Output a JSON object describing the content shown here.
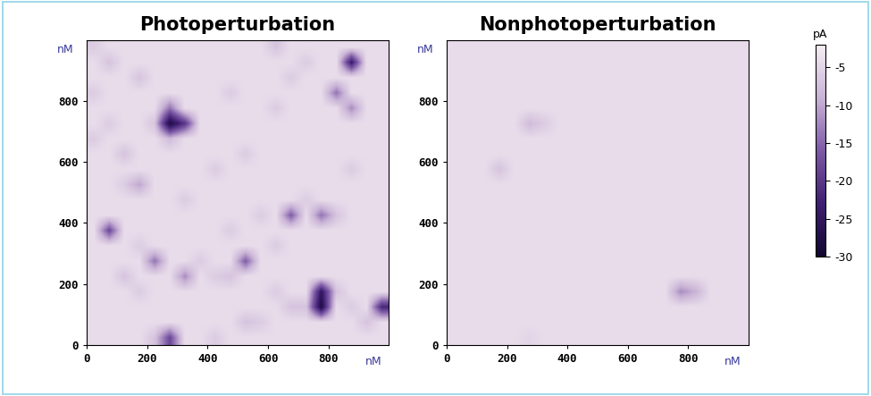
{
  "chart_data": [
    {
      "type": "heatmap",
      "title": "Photoperturbation",
      "xlabel": "nM",
      "ylabel": "nM",
      "xlim": [
        0,
        1000
      ],
      "ylim": [
        0,
        1000
      ],
      "xticks": [
        0,
        200,
        400,
        600,
        800
      ],
      "yticks": [
        0,
        200,
        400,
        600,
        800
      ],
      "cells": [
        [
          -4,
          -4,
          -4,
          -4,
          -7,
          -18,
          -4,
          -4,
          -6,
          -4,
          -4,
          -4,
          -4,
          -4,
          -4,
          -4,
          -4,
          -4,
          -4,
          -4
        ],
        [
          -4,
          -4,
          -4,
          -4,
          -4,
          -4,
          -4,
          -4,
          -4,
          -4,
          -7,
          -6,
          -4,
          -4,
          -4,
          -4,
          -4,
          -4,
          -7,
          -4
        ],
        [
          -4,
          -4,
          -4,
          -4,
          -4,
          -4,
          -4,
          -4,
          -4,
          -4,
          -4,
          -4,
          -4,
          -7,
          -7,
          -28,
          -4,
          -6,
          -4,
          -22
        ],
        [
          -4,
          -4,
          -4,
          -6,
          -4,
          -4,
          -4,
          -4,
          -4,
          -4,
          -4,
          -4,
          -6,
          -4,
          -4,
          -25,
          -7,
          -4,
          -4,
          -4
        ],
        [
          -4,
          -4,
          -7,
          -4,
          -4,
          -4,
          -12,
          -4,
          -6,
          -7,
          -4,
          -4,
          -4,
          -4,
          -4,
          -4,
          -4,
          -4,
          -4,
          -4
        ],
        [
          -4,
          -4,
          -4,
          -4,
          -14,
          -4,
          -4,
          -6,
          -4,
          -4,
          -16,
          -4,
          -4,
          -4,
          -4,
          -4,
          -4,
          -4,
          -4,
          -4
        ],
        [
          -4,
          -4,
          -4,
          -6,
          -4,
          -4,
          -4,
          -4,
          -4,
          -4,
          -4,
          -4,
          -6,
          -4,
          -4,
          -4,
          -4,
          -4,
          -4,
          -4
        ],
        [
          -4,
          -18,
          -4,
          -4,
          -4,
          -4,
          -4,
          -4,
          -4,
          -6,
          -4,
          -4,
          -4,
          -4,
          -4,
          -4,
          -4,
          -4,
          -4,
          -4
        ],
        [
          -4,
          -4,
          -4,
          -4,
          -4,
          -4,
          -4,
          -4,
          -4,
          -4,
          -4,
          -6,
          -4,
          -16,
          -4,
          -14,
          -7,
          -4,
          -4,
          -4
        ],
        [
          -4,
          -4,
          -4,
          -4,
          -4,
          -4,
          -6,
          -4,
          -4,
          -4,
          -4,
          -4,
          -4,
          -4,
          -6,
          -4,
          -4,
          -4,
          -4,
          -4
        ],
        [
          -4,
          -4,
          -6,
          -10,
          -4,
          -4,
          -4,
          -4,
          -4,
          -4,
          -4,
          -4,
          -4,
          -4,
          -4,
          -4,
          -4,
          -4,
          -4,
          -4
        ],
        [
          -4,
          -4,
          -4,
          -4,
          -4,
          -4,
          -4,
          -4,
          -6,
          -4,
          -4,
          -4,
          -4,
          -4,
          -4,
          -4,
          -4,
          -6,
          -4,
          -4
        ],
        [
          -4,
          -4,
          -7,
          -4,
          -4,
          -4,
          -4,
          -4,
          -4,
          -4,
          -6,
          -4,
          -4,
          -4,
          -4,
          -4,
          -4,
          -4,
          -4,
          -4
        ],
        [
          -6,
          -4,
          -4,
          -4,
          -4,
          -8,
          -4,
          -4,
          -4,
          -4,
          -4,
          -4,
          -4,
          -4,
          -4,
          -4,
          -4,
          -4,
          -4,
          -4
        ],
        [
          -4,
          -6,
          -4,
          -4,
          -7,
          -28,
          -20,
          -4,
          -4,
          -4,
          -4,
          -4,
          -4,
          -4,
          -4,
          -4,
          -4,
          -4,
          -4,
          -4
        ],
        [
          -4,
          -4,
          -4,
          -4,
          -4,
          -14,
          -4,
          -4,
          -4,
          -4,
          -4,
          -4,
          -6,
          -4,
          -4,
          -4,
          -4,
          -12,
          -4,
          -4
        ],
        [
          -6,
          -4,
          -4,
          -4,
          -4,
          -4,
          -4,
          -4,
          -4,
          -6,
          -4,
          -4,
          -4,
          -4,
          -4,
          -4,
          -14,
          -4,
          -4,
          -4
        ],
        [
          -4,
          -4,
          -4,
          -7,
          -4,
          -4,
          -4,
          -4,
          -4,
          -4,
          -4,
          -4,
          -4,
          -6,
          -4,
          -4,
          -4,
          -4,
          -4,
          -4
        ],
        [
          -4,
          -7,
          -4,
          -4,
          -4,
          -4,
          -4,
          -4,
          -4,
          -4,
          -4,
          -4,
          -4,
          -4,
          -6,
          -4,
          -4,
          -24,
          -4,
          -4
        ],
        [
          -6,
          -4,
          -4,
          -4,
          -4,
          -4,
          -4,
          -4,
          -4,
          -4,
          -4,
          -4,
          -7,
          -4,
          -4,
          -4,
          -4,
          -4,
          -4,
          -4
        ]
      ]
    },
    {
      "type": "heatmap",
      "title": "Nonphotoperturbation",
      "xlabel": "nM",
      "ylabel": "nM",
      "xlim": [
        0,
        1000
      ],
      "ylim": [
        0,
        1000
      ],
      "xticks": [
        0,
        200,
        400,
        600,
        800
      ],
      "yticks": [
        0,
        200,
        400,
        600,
        800
      ],
      "cells": [
        [
          -4,
          -4,
          -4,
          -4,
          -4,
          -5,
          -4,
          -4,
          -4,
          -4,
          -4,
          -4,
          -4,
          -4,
          -4,
          -4,
          -4,
          -4,
          -4,
          -4
        ],
        [
          -4,
          -4,
          -4,
          -4,
          -4,
          -4,
          -4,
          -4,
          -4,
          -4,
          -4,
          -4,
          -4,
          -4,
          -4,
          -4,
          -4,
          -4,
          -4,
          -4
        ],
        [
          -4,
          -4,
          -4,
          -4,
          -4,
          -4,
          -4,
          -4,
          -4,
          -4,
          -4,
          -4,
          -4,
          -4,
          -4,
          -4,
          -4,
          -4,
          -4,
          -4
        ],
        [
          -4,
          -4,
          -4,
          -4,
          -4,
          -4,
          -4,
          -4,
          -4,
          -4,
          -4,
          -4,
          -4,
          -4,
          -4,
          -12,
          -9,
          -4,
          -4,
          -4
        ],
        [
          -4,
          -4,
          -4,
          -4,
          -4,
          -4,
          -4,
          -4,
          -4,
          -4,
          -4,
          -4,
          -4,
          -4,
          -4,
          -4,
          -4,
          -4,
          -4,
          -4
        ],
        [
          -4,
          -4,
          -4,
          -4,
          -4,
          -4,
          -4,
          -4,
          -4,
          -4,
          -4,
          -4,
          -4,
          -4,
          -4,
          -4,
          -4,
          -4,
          -4,
          -4
        ],
        [
          -4,
          -4,
          -4,
          -4,
          -4,
          -4,
          -4,
          -4,
          -4,
          -4,
          -4,
          -4,
          -4,
          -4,
          -4,
          -4,
          -4,
          -4,
          -4,
          -4
        ],
        [
          -4,
          -4,
          -4,
          -4,
          -4,
          -4,
          -4,
          -4,
          -4,
          -4,
          -4,
          -4,
          -4,
          -4,
          -4,
          -4,
          -4,
          -4,
          -4,
          -4
        ],
        [
          -4,
          -4,
          -4,
          -4,
          -4,
          -4,
          -4,
          -4,
          -4,
          -4,
          -4,
          -4,
          -4,
          -4,
          -4,
          -4,
          -4,
          -4,
          -4,
          -4
        ],
        [
          -4,
          -4,
          -4,
          -4,
          -4,
          -4,
          -4,
          -4,
          -4,
          -4,
          -4,
          -4,
          -4,
          -4,
          -4,
          -4,
          -4,
          -4,
          -4,
          -4
        ],
        [
          -4,
          -4,
          -4,
          -4,
          -4,
          -4,
          -4,
          -4,
          -4,
          -4,
          -4,
          -4,
          -4,
          -4,
          -4,
          -4,
          -4,
          -4,
          -4,
          -4
        ],
        [
          -4,
          -4,
          -4,
          -7,
          -4,
          -4,
          -4,
          -4,
          -4,
          -4,
          -4,
          -4,
          -4,
          -4,
          -4,
          -4,
          -4,
          -4,
          -4,
          -4
        ],
        [
          -4,
          -4,
          -4,
          -4,
          -4,
          -4,
          -4,
          -4,
          -4,
          -4,
          -4,
          -4,
          -4,
          -4,
          -4,
          -4,
          -4,
          -4,
          -4,
          -4
        ],
        [
          -4,
          -4,
          -4,
          -4,
          -4,
          -4,
          -4,
          -4,
          -4,
          -4,
          -4,
          -4,
          -4,
          -4,
          -4,
          -4,
          -4,
          -4,
          -4,
          -4
        ],
        [
          -4,
          -4,
          -4,
          -4,
          -4,
          -8,
          -6,
          -4,
          -4,
          -4,
          -4,
          -4,
          -4,
          -4,
          -4,
          -4,
          -4,
          -4,
          -4,
          -4
        ],
        [
          -4,
          -4,
          -4,
          -4,
          -4,
          -4,
          -4,
          -4,
          -4,
          -4,
          -4,
          -4,
          -4,
          -4,
          -4,
          -4,
          -4,
          -4,
          -4,
          -4
        ],
        [
          -4,
          -4,
          -4,
          -4,
          -4,
          -4,
          -4,
          -4,
          -4,
          -4,
          -4,
          -4,
          -4,
          -4,
          -4,
          -4,
          -4,
          -4,
          -4,
          -4
        ],
        [
          -4,
          -4,
          -4,
          -4,
          -4,
          -4,
          -4,
          -4,
          -4,
          -4,
          -4,
          -4,
          -4,
          -4,
          -4,
          -4,
          -4,
          -4,
          -4,
          -4
        ],
        [
          -4,
          -4,
          -4,
          -4,
          -4,
          -4,
          -4,
          -4,
          -4,
          -4,
          -4,
          -4,
          -4,
          -4,
          -4,
          -4,
          -4,
          -4,
          -4,
          -4
        ],
        [
          -4,
          -4,
          -4,
          -4,
          -4,
          -4,
          -4,
          -4,
          -4,
          -4,
          -4,
          -4,
          -4,
          -4,
          -4,
          -4,
          -4,
          -4,
          -4,
          -4
        ]
      ]
    }
  ],
  "colorbar": {
    "label": "pA",
    "range": [
      -30,
      -2
    ],
    "ticks": [
      -5,
      -10,
      -15,
      -20,
      -25,
      -30
    ]
  }
}
